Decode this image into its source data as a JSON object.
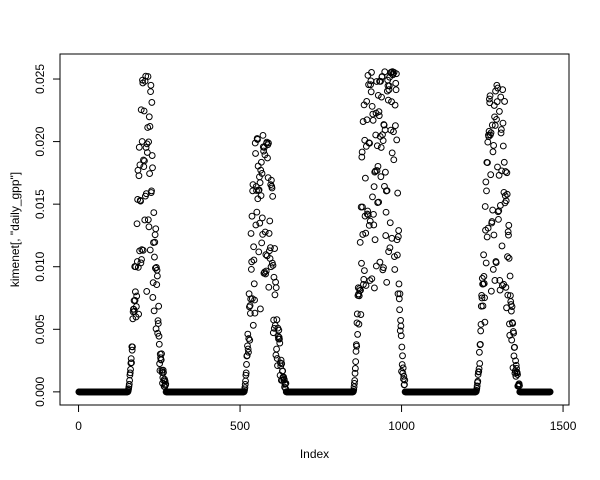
{
  "figure": {
    "background": "#ffffff",
    "foreground": "#000000"
  },
  "chart_data": {
    "type": "scatter",
    "title": "",
    "xlabel": "Index",
    "ylabel": "kimenet[, \"daily_gpp\"]",
    "x_ticks": [
      0,
      500,
      1000,
      1500
    ],
    "x_tick_labels": [
      "0",
      "500",
      "1000",
      "1500"
    ],
    "y_ticks": [
      0,
      0.005,
      0.01,
      0.015,
      0.02,
      0.025
    ],
    "y_tick_labels": [
      "0.000",
      "0.005",
      "0.010",
      "0.015",
      "0.020",
      "0.025"
    ],
    "xlim": [
      -57.4,
      1518.4
    ],
    "ylim": [
      -0.00105,
      0.027
    ],
    "grid": false,
    "box": true,
    "legend": null,
    "n_points": 1460,
    "marker": {
      "shape": "open-circle",
      "radius": 2.9,
      "stroke": "#000000",
      "stroke_width": 1,
      "fill": "none"
    },
    "series_description": "Daily GPP over four years: value is 0 in dormant season (solid bands of overlapping circles) with noisy bell-shaped growing-season peaks each year",
    "seasons": [
      {
        "rise_start": 152,
        "rise_end": 202,
        "plateau_end": 226,
        "fall_end": 270,
        "max": 0.0255
      },
      {
        "rise_start": 512,
        "rise_end": 550,
        "plateau_end": 595,
        "fall_end": 642,
        "max": 0.0205
      },
      {
        "rise_start": 850,
        "rise_end": 890,
        "plateau_end": 985,
        "fall_end": 1010,
        "max": 0.0256
      },
      {
        "rise_start": 1230,
        "rise_end": 1278,
        "plateau_end": 1320,
        "fall_end": 1365,
        "max": 0.0245
      }
    ],
    "noise_seed": 11
  }
}
